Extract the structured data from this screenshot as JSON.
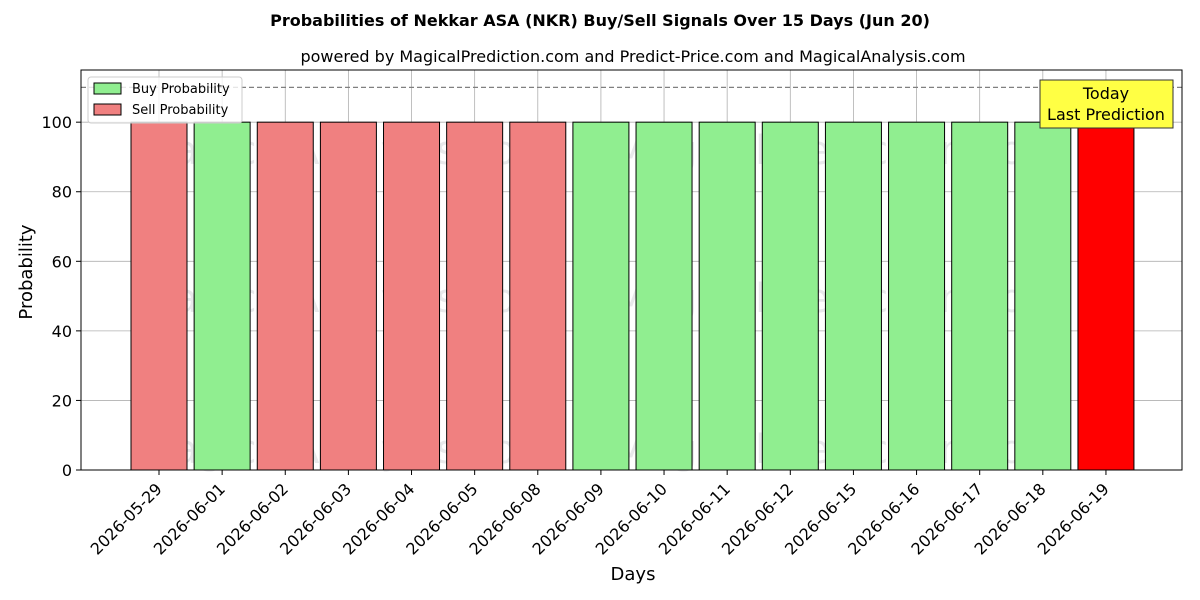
{
  "chart_data": {
    "type": "bar",
    "title": "Probabilities of Nekkar ASA (NKR) Buy/Sell Signals Over 15 Days (Jun 20)",
    "subtitle": "powered by MagicalPrediction.com and Predict-Price.com and MagicalAnalysis.com",
    "xlabel": "Days",
    "ylabel": "Probability",
    "ylim": [
      0,
      115
    ],
    "yticks": [
      0,
      20,
      40,
      60,
      80,
      100
    ],
    "reference_line": 110,
    "grid": true,
    "legend_position": "top-left",
    "categories": [
      "2026-05-29",
      "2026-06-01",
      "2026-06-02",
      "2026-06-03",
      "2026-06-04",
      "2026-06-05",
      "2026-06-08",
      "2026-06-09",
      "2026-06-10",
      "2026-06-11",
      "2026-06-12",
      "2026-06-15",
      "2026-06-16",
      "2026-06-17",
      "2026-06-18",
      "2026-06-19"
    ],
    "values": [
      100,
      100,
      100,
      100,
      100,
      100,
      100,
      100,
      100,
      100,
      100,
      100,
      100,
      100,
      100,
      100
    ],
    "signals": [
      "sell",
      "buy",
      "sell",
      "sell",
      "sell",
      "sell",
      "sell",
      "buy",
      "buy",
      "buy",
      "buy",
      "buy",
      "buy",
      "buy",
      "buy",
      "today-sell"
    ],
    "series": [
      {
        "name": "Buy Probability",
        "color": "#90ee90"
      },
      {
        "name": "Sell Probability",
        "color": "#f08080"
      }
    ],
    "today_color": "#ff0000",
    "annotation": {
      "line1": "Today",
      "line2": "Last Prediction",
      "color": "#ffff44"
    },
    "watermarks": [
      "MagicalAnalysis.com",
      "MagicalPrediction.com"
    ]
  }
}
